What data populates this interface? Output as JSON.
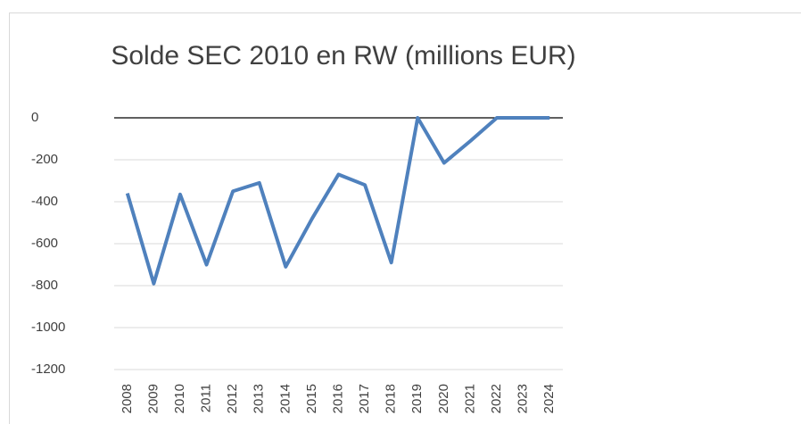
{
  "chart_data": {
    "type": "line",
    "title": "Solde SEC 2010 en RW (millions EUR)",
    "categories": [
      "2008",
      "2009",
      "2010",
      "2011",
      "2012",
      "2013",
      "2014",
      "2015",
      "2016",
      "2017",
      "2018",
      "2019",
      "2020",
      "2021",
      "2022",
      "2023",
      "2024"
    ],
    "series": [
      {
        "name": "Solde SEC 2010",
        "color": "#4f81bd",
        "values": [
          -360,
          -790,
          -365,
          -700,
          -350,
          -310,
          -710,
          -480,
          -270,
          -320,
          -690,
          0,
          -215,
          -110,
          0,
          0,
          0
        ]
      }
    ],
    "ylim": [
      -1200,
      0
    ],
    "yticks": [
      0,
      -200,
      -400,
      -600,
      -800,
      -1000,
      -1200
    ],
    "grid": true
  }
}
